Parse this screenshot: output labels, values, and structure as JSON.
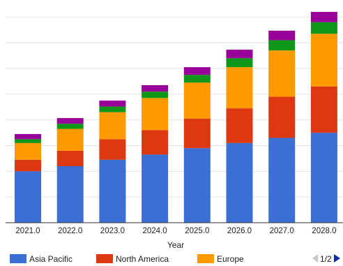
{
  "chart_data": {
    "type": "bar",
    "stacked": true,
    "categories": [
      "2021.0",
      "2022.0",
      "2023.0",
      "2024.0",
      "2025.0",
      "2026.0",
      "2027.0",
      "2028.0"
    ],
    "series": [
      {
        "name": "Asia Pacific",
        "color": "#3b6fd4",
        "values": [
          2.0,
          2.2,
          2.45,
          2.65,
          2.9,
          3.1,
          3.3,
          3.5
        ]
      },
      {
        "name": "North America",
        "color": "#dc3912",
        "values": [
          0.45,
          0.6,
          0.8,
          0.95,
          1.15,
          1.35,
          1.6,
          1.8
        ]
      },
      {
        "name": "Europe",
        "color": "#ff9900",
        "values": [
          0.65,
          0.85,
          1.05,
          1.25,
          1.4,
          1.6,
          1.8,
          2.05
        ]
      },
      {
        "name": "",
        "color": "#109618",
        "values": [
          0.15,
          0.2,
          0.22,
          0.25,
          0.3,
          0.35,
          0.4,
          0.45
        ]
      },
      {
        "name": "",
        "color": "#990099",
        "values": [
          0.2,
          0.22,
          0.23,
          0.25,
          0.3,
          0.33,
          0.37,
          0.4
        ]
      }
    ],
    "xlabel": "Year",
    "ylabel": "",
    "ylim": [
      0,
      8.5
    ],
    "grid": true,
    "legend": {
      "placement": "bottom",
      "visible_series": [
        0,
        1,
        2
      ],
      "page": "1/2"
    }
  }
}
